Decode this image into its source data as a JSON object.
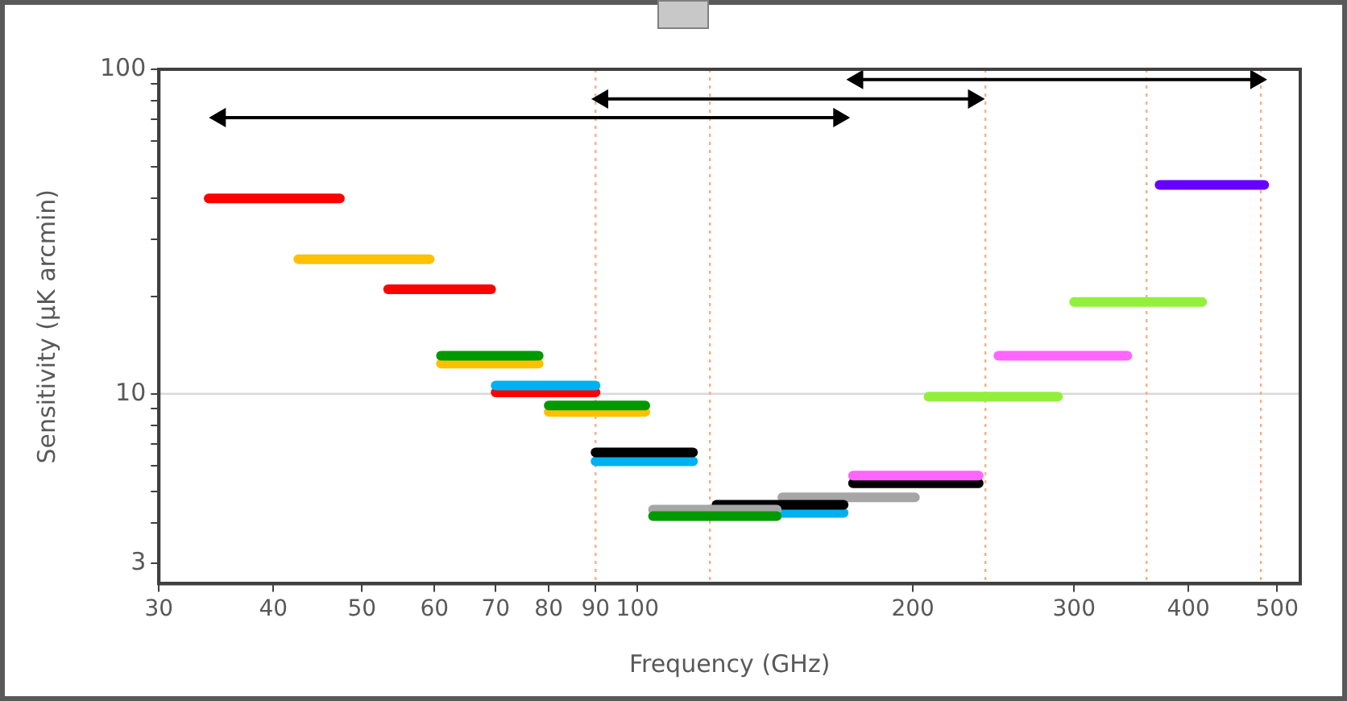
{
  "chart_data": {
    "type": "line",
    "xlabel": "Frequency (GHz)",
    "ylabel": "Sensitivity (μK arcmin)",
    "log": "xy",
    "grid": false,
    "legend": false,
    "marker": "none",
    "line_style": "solid",
    "xlim": [
      30,
      530
    ],
    "xticks": [
      30,
      40,
      50,
      60,
      70,
      80,
      90,
      100,
      200,
      300,
      400,
      500
    ],
    "ylim": [
      2.6,
      100
    ],
    "yticks": [
      3,
      {
        "value": 4,
        "label": null
      },
      {
        "value": 5,
        "label": null
      },
      {
        "value": 6,
        "label": null
      },
      {
        "value": 7,
        "label": null
      },
      {
        "value": 8,
        "label": null
      },
      {
        "value": 9,
        "label": null
      },
      10,
      {
        "value": 20,
        "label": null
      },
      {
        "value": 30,
        "label": null
      },
      {
        "value": 40,
        "label": null
      },
      {
        "value": 50,
        "label": null
      },
      {
        "value": 60,
        "label": null
      },
      {
        "value": 70,
        "label": null
      },
      {
        "value": 80,
        "label": null
      },
      {
        "value": 90,
        "label": null
      },
      100
    ],
    "ref_lines": [
      {
        "axis": "y",
        "value": 10,
        "color": "#d9d9d9",
        "line_style": "solid"
      },
      {
        "axis": "x",
        "value": 90,
        "color": "#f4b183",
        "line_style": "dotted"
      },
      {
        "axis": "x",
        "value": 120,
        "color": "#f4b183",
        "line_style": "dotted"
      },
      {
        "axis": "x",
        "value": 240,
        "color": "#f4b183",
        "line_style": "dotted"
      },
      {
        "axis": "x",
        "value": 360,
        "color": "#f4b183",
        "line_style": "dotted"
      },
      {
        "axis": "x",
        "value": 480,
        "color": "#f4b183",
        "line_style": "dotted"
      }
    ],
    "series": [
      {
        "color": "#ff0000",
        "x": [
          34,
          47.3
        ],
        "values": [
          40,
          40
        ]
      },
      {
        "color": "#ffc000",
        "x": [
          42.6,
          59.3
        ],
        "values": [
          26,
          26
        ]
      },
      {
        "color": "#ff0000",
        "x": [
          53.4,
          69.2
        ],
        "values": [
          21,
          21
        ]
      },
      {
        "color": "#009900",
        "x": [
          61,
          78
        ],
        "values": [
          13.1,
          13.1
        ]
      },
      {
        "color": "#ffc000",
        "x": [
          61,
          78
        ],
        "values": [
          12.4,
          12.4
        ]
      },
      {
        "color": "#00b0f0",
        "x": [
          70,
          90
        ],
        "values": [
          10.6,
          10.6
        ]
      },
      {
        "color": "#ff0000",
        "x": [
          70,
          90
        ],
        "values": [
          10.1,
          10.1
        ]
      },
      {
        "color": "#009900",
        "x": [
          80,
          102
        ],
        "values": [
          9.2,
          9.2
        ]
      },
      {
        "color": "#ffc000",
        "x": [
          80,
          102
        ],
        "values": [
          8.8,
          8.8
        ]
      },
      {
        "color": "#000000",
        "x": [
          90,
          115
        ],
        "values": [
          6.6,
          6.6
        ]
      },
      {
        "color": "#00b0f0",
        "x": [
          90,
          115
        ],
        "values": [
          6.2,
          6.2
        ]
      },
      {
        "color": "#009900",
        "x": [
          104,
          142
        ],
        "values": [
          4.2,
          4.2
        ]
      },
      {
        "color": "#a6a6a6",
        "x": [
          104,
          142
        ],
        "values": [
          4.4,
          4.4
        ]
      },
      {
        "color": "#000000",
        "x": [
          122,
          168
        ],
        "values": [
          4.55,
          4.55
        ]
      },
      {
        "color": "#00b0f0",
        "x": [
          122,
          168
        ],
        "values": [
          4.3,
          4.3
        ]
      },
      {
        "color": "#a6a6a6",
        "x": [
          144,
          201
        ],
        "values": [
          4.8,
          4.8
        ]
      },
      {
        "color": "#ff66ff",
        "x": [
          172,
          236
        ],
        "values": [
          5.6,
          5.6
        ]
      },
      {
        "color": "#000000",
        "x": [
          172,
          236
        ],
        "values": [
          5.3,
          5.3
        ]
      },
      {
        "color": "#92f03c",
        "x": [
          208,
          288
        ],
        "values": [
          9.8,
          9.8
        ]
      },
      {
        "color": "#ff66ff",
        "x": [
          248,
          343
        ],
        "values": [
          13.1,
          13.1
        ]
      },
      {
        "color": "#92f03c",
        "x": [
          300,
          414
        ],
        "values": [
          19.2,
          19.2
        ]
      },
      {
        "color": "#6600ff",
        "x": [
          372,
          484
        ],
        "values": [
          44,
          44
        ]
      },
      {
        "color": "#000000",
        "marker": "triangle",
        "x": [
          35,
          166
        ],
        "values": [
          71,
          71
        ]
      },
      {
        "color": "#000000",
        "marker": "triangle",
        "x": [
          91.6,
          233
        ],
        "values": [
          81,
          81
        ]
      },
      {
        "color": "#000000",
        "marker": "triangle",
        "x": [
          174,
          474
        ],
        "values": [
          93,
          93
        ]
      }
    ]
  }
}
